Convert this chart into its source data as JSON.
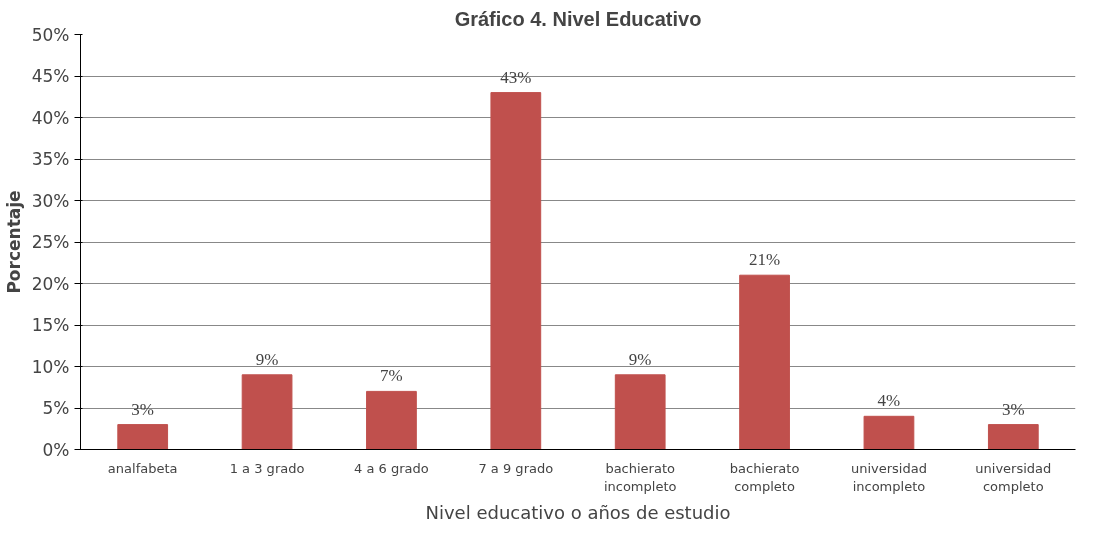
{
  "chart_data": {
    "type": "bar",
    "title": "Gráfico 4. Nivel Educativo",
    "xlabel": "Nivel educativo o años de estudio",
    "ylabel": "Porcentaje",
    "categories": [
      "analfabeta",
      "1 a 3 grado",
      "4 a 6 grado",
      "7 a 9 grado",
      "bachierato\nincompleto",
      "bachierato\ncompleto",
      "universidad\nincompleto",
      "universidad\ncompleto"
    ],
    "values": [
      3,
      9,
      7,
      43,
      9,
      21,
      4,
      3
    ],
    "color": "#c0504d",
    "value_labels": [
      "3%",
      "9%",
      "7%",
      "43%",
      "9%",
      "21%",
      "4%",
      "3%"
    ],
    "ylim": [
      0,
      50
    ],
    "yticks": [
      {
        "value": 0,
        "label": "0%"
      },
      {
        "value": 5,
        "label": "5%"
      },
      {
        "value": 10,
        "label": "10%"
      },
      {
        "value": 15,
        "label": "15%"
      },
      {
        "value": 20,
        "label": "20%"
      },
      {
        "value": 25,
        "label": "25%"
      },
      {
        "value": 30,
        "label": "30%"
      },
      {
        "value": 35,
        "label": "35%"
      },
      {
        "value": 40,
        "label": "40%"
      },
      {
        "value": 45,
        "label": "45%"
      },
      {
        "value": 50,
        "label": "50%"
      }
    ],
    "grid": "y"
  }
}
